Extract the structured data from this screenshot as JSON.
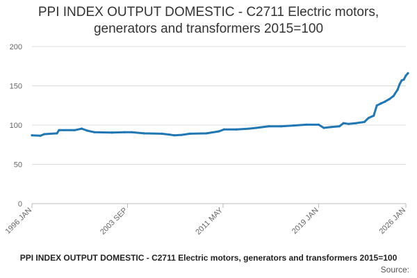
{
  "chart_data": {
    "type": "line",
    "title_line1": "PPI INDEX OUTPUT DOMESTIC - C2711 Electric motors,",
    "title_line2": "generators and transformers 2015=100",
    "legend_label": "PPI INDEX OUTPUT DOMESTIC - C2711 Electric motors, generators and transformers 2015=100",
    "source_label": "Source:",
    "ylim": [
      0,
      200
    ],
    "y_ticks": [
      0,
      50,
      100,
      150,
      200
    ],
    "x_range": [
      "1996-01",
      "2026-01"
    ],
    "x_ticks": [
      {
        "date": "1996-01",
        "label": "1996 JAN"
      },
      {
        "date": "2003-09",
        "label": "2003 SEP"
      },
      {
        "date": "2011-05",
        "label": "2011 MAY"
      },
      {
        "date": "2019-01",
        "label": "2019 JAN"
      },
      {
        "date": "2026-01",
        "label": "2026 JAN"
      }
    ],
    "grid": true,
    "legend_position": "bottom",
    "colors": {
      "line": "#1f77b4",
      "grid": "#dddddd",
      "axis": "#bbbbbb"
    },
    "series": [
      {
        "name": "PPI INDEX OUTPUT DOMESTIC - C2711 Electric motors, generators and transformers 2015=100",
        "points": [
          [
            "1996-01",
            87
          ],
          [
            "1996-09",
            86.5
          ],
          [
            "1997-01",
            88.5
          ],
          [
            "1998-01",
            89.5
          ],
          [
            "1998-03",
            93.5
          ],
          [
            "1999-06",
            93.5
          ],
          [
            "2000-01",
            95.5
          ],
          [
            "2000-06",
            93
          ],
          [
            "2001-01",
            91
          ],
          [
            "2002-06",
            90.5
          ],
          [
            "2003-06",
            91
          ],
          [
            "2004-01",
            91
          ],
          [
            "2005-01",
            89.5
          ],
          [
            "2006-06",
            89
          ],
          [
            "2007-01",
            88
          ],
          [
            "2007-06",
            87
          ],
          [
            "2008-01",
            87.5
          ],
          [
            "2008-09",
            89
          ],
          [
            "2010-01",
            89.5
          ],
          [
            "2011-01",
            92
          ],
          [
            "2011-06",
            94.5
          ],
          [
            "2012-06",
            94.5
          ],
          [
            "2013-06",
            95.5
          ],
          [
            "2014-01",
            96.5
          ],
          [
            "2015-01",
            98.5
          ],
          [
            "2016-01",
            98.5
          ],
          [
            "2017-01",
            99.5
          ],
          [
            "2018-01",
            100.5
          ],
          [
            "2019-01",
            100.5
          ],
          [
            "2019-06",
            96.5
          ],
          [
            "2020-01",
            97.5
          ],
          [
            "2020-09",
            98.5
          ],
          [
            "2021-01",
            102.5
          ],
          [
            "2021-06",
            101.5
          ],
          [
            "2022-01",
            102.5
          ],
          [
            "2022-09",
            104
          ],
          [
            "2023-01",
            109
          ],
          [
            "2023-06",
            112
          ],
          [
            "2023-09",
            125
          ],
          [
            "2024-01",
            127.5
          ],
          [
            "2024-05",
            130
          ],
          [
            "2024-09",
            133
          ],
          [
            "2025-01",
            137
          ],
          [
            "2025-05",
            145
          ],
          [
            "2025-07",
            152
          ],
          [
            "2025-09",
            157
          ],
          [
            "2025-11",
            158
          ],
          [
            "2026-01",
            163
          ],
          [
            "2026-03",
            166
          ]
        ]
      }
    ]
  }
}
